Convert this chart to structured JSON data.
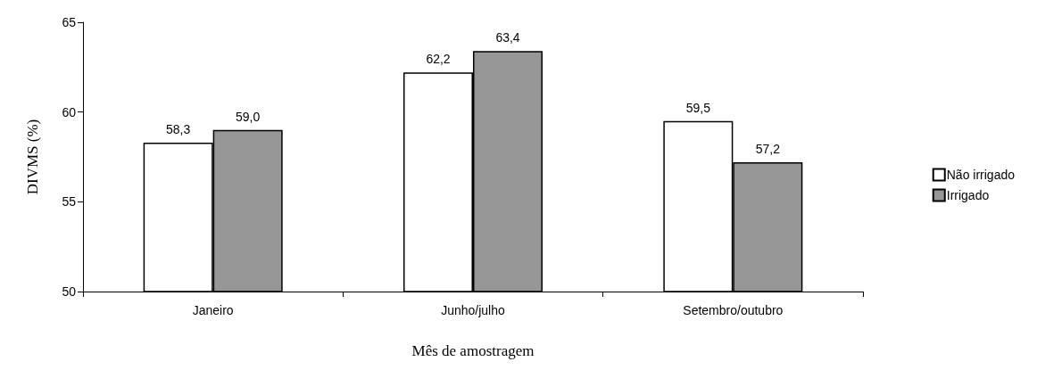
{
  "chart_data": {
    "type": "bar",
    "xlabel": "Mês de amostragem",
    "ylabel": "DIVMS (%)",
    "categories": [
      "Janeiro",
      "Junho/julho",
      "Setembro/outubro"
    ],
    "series": [
      {
        "name": "Não irrigado",
        "color": "#ffffff",
        "values": [
          58.3,
          62.2,
          59.5
        ],
        "value_labels": [
          "58,3",
          "62,2",
          "59,5"
        ]
      },
      {
        "name": "Irrigado",
        "color": "#969696",
        "values": [
          59.0,
          63.4,
          57.2
        ],
        "value_labels": [
          "59,0",
          "63,4",
          "57,2"
        ]
      }
    ],
    "ylim": [
      50,
      65
    ],
    "yticks": [
      50,
      55,
      60,
      65
    ],
    "grid": false,
    "legend": "right"
  }
}
